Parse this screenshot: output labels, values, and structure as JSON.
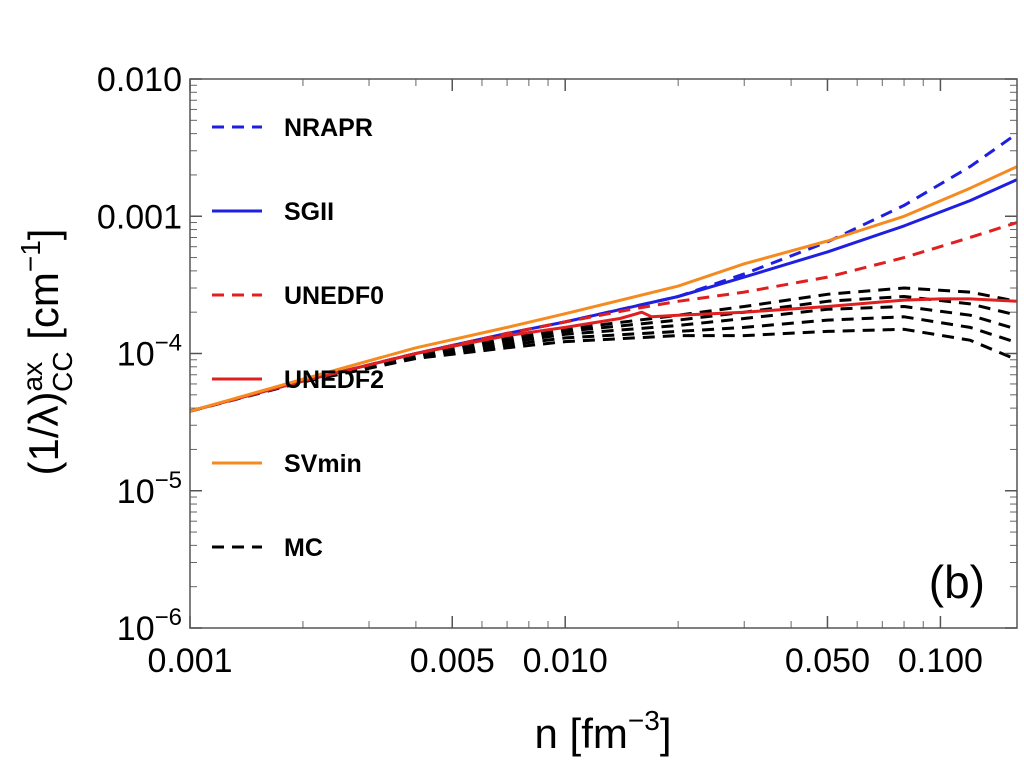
{
  "chart_data": {
    "type": "line",
    "panel_label": "(b)",
    "xlabel": "n [fm",
    "xlabel_sup": "−3",
    "xlabel_end": "]",
    "ylabel": "(1/λ)",
    "ylabel_sup": "ax",
    "ylabel_sub": "CC",
    "ylabel_end": " [cm",
    "ylabel_unit_sup": "−1",
    "ylabel_close": "]",
    "xscale": "log",
    "yscale": "log",
    "xlim": [
      0.001,
      0.16
    ],
    "ylim": [
      1e-06,
      0.01
    ],
    "x_ticks": [
      {
        "value": 0.001,
        "label": "0.001"
      },
      {
        "value": 0.005,
        "label": "0.005"
      },
      {
        "value": 0.01,
        "label": "0.010"
      },
      {
        "value": 0.05,
        "label": "0.050"
      },
      {
        "value": 0.1,
        "label": "0.100"
      }
    ],
    "y_ticks": [
      {
        "value": 0.01,
        "label": "0.010"
      },
      {
        "value": 0.001,
        "label": "0.001"
      },
      {
        "value": 0.0001,
        "base": "10",
        "exp": "−4"
      },
      {
        "value": 1e-05,
        "base": "10",
        "exp": "−5"
      },
      {
        "value": 1e-06,
        "base": "10",
        "exp": "−6"
      }
    ],
    "series": [
      {
        "name": "NRAPR",
        "color": "#1f1fe0",
        "style": "dashed",
        "x": [
          0.001,
          0.002,
          0.004,
          0.007,
          0.01,
          0.02,
          0.03,
          0.05,
          0.08,
          0.12,
          0.16
        ],
        "y": [
          3.8e-05,
          6.3e-05,
          0.0001,
          0.00014,
          0.00017,
          0.00026,
          0.00038,
          0.00065,
          0.0012,
          0.0023,
          0.004
        ]
      },
      {
        "name": "SGII",
        "color": "#1f1fe0",
        "style": "solid",
        "x": [
          0.001,
          0.002,
          0.004,
          0.007,
          0.01,
          0.02,
          0.03,
          0.05,
          0.08,
          0.12,
          0.16
        ],
        "y": [
          3.8e-05,
          6.3e-05,
          0.0001,
          0.00014,
          0.00017,
          0.00026,
          0.00036,
          0.00055,
          0.00085,
          0.0013,
          0.00185
        ]
      },
      {
        "name": "UNEDF0",
        "color": "#e01f1f",
        "style": "dashed",
        "x": [
          0.001,
          0.002,
          0.004,
          0.007,
          0.01,
          0.015,
          0.02,
          0.03,
          0.05,
          0.08,
          0.12,
          0.16
        ],
        "y": [
          3.8e-05,
          6.3e-05,
          0.0001,
          0.00014,
          0.00017,
          0.00021,
          0.00024,
          0.00028,
          0.00036,
          0.0005,
          0.0007,
          0.0009
        ]
      },
      {
        "name": "UNEDF2",
        "color": "#e01f1f",
        "style": "solid",
        "x": [
          0.001,
          0.002,
          0.004,
          0.007,
          0.01,
          0.014,
          0.016,
          0.017,
          0.02,
          0.03,
          0.05,
          0.08,
          0.1,
          0.12,
          0.16
        ],
        "y": [
          3.8e-05,
          6.3e-05,
          0.0001,
          0.000135,
          0.000155,
          0.00018,
          0.0002,
          0.000185,
          0.00019,
          0.0002,
          0.00022,
          0.000245,
          0.00025,
          0.00025,
          0.00024
        ]
      },
      {
        "name": "SVmin",
        "color": "#f58a1f",
        "style": "solid",
        "x": [
          0.001,
          0.002,
          0.004,
          0.007,
          0.01,
          0.02,
          0.03,
          0.05,
          0.08,
          0.12,
          0.16
        ],
        "y": [
          3.8e-05,
          6.5e-05,
          0.00011,
          0.000155,
          0.000195,
          0.00031,
          0.00045,
          0.00066,
          0.001,
          0.0016,
          0.0023
        ]
      },
      {
        "name": "MC",
        "color": "#000000",
        "style": "dashed",
        "x": [
          0.001,
          0.002,
          0.004,
          0.007,
          0.01,
          0.02,
          0.03,
          0.05,
          0.08,
          0.12,
          0.16
        ],
        "y": [
          3.8e-05,
          6.3e-05,
          0.0001,
          0.00013,
          0.00015,
          0.00019,
          0.00022,
          0.00027,
          0.0003,
          0.00028,
          0.00024
        ]
      },
      {
        "name": "",
        "color": "#000000",
        "style": "dashed",
        "x": [
          0.001,
          0.002,
          0.004,
          0.007,
          0.01,
          0.02,
          0.03,
          0.05,
          0.08,
          0.12,
          0.16
        ],
        "y": [
          3.8e-05,
          6.3e-05,
          9.8e-05,
          0.000125,
          0.000145,
          0.000175,
          0.0002,
          0.00024,
          0.00026,
          0.00023,
          0.00019
        ]
      },
      {
        "name": "",
        "color": "#000000",
        "style": "dashed",
        "x": [
          0.001,
          0.002,
          0.004,
          0.007,
          0.01,
          0.02,
          0.03,
          0.05,
          0.08,
          0.12,
          0.16
        ],
        "y": [
          3.8e-05,
          6.3e-05,
          9.6e-05,
          0.00012,
          0.000138,
          0.00016,
          0.00018,
          0.00021,
          0.00022,
          0.00019,
          0.00015
        ]
      },
      {
        "name": "",
        "color": "#000000",
        "style": "dashed",
        "x": [
          0.001,
          0.002,
          0.004,
          0.007,
          0.01,
          0.02,
          0.03,
          0.05,
          0.08,
          0.12,
          0.16
        ],
        "y": [
          3.8e-05,
          6.3e-05,
          9.4e-05,
          0.000115,
          0.00013,
          0.000145,
          0.000155,
          0.000175,
          0.000185,
          0.000155,
          0.00012
        ]
      },
      {
        "name": "",
        "color": "#000000",
        "style": "dashed",
        "x": [
          0.001,
          0.002,
          0.004,
          0.007,
          0.01,
          0.02,
          0.03,
          0.05,
          0.08,
          0.12,
          0.16
        ],
        "y": [
          3.8e-05,
          6.2e-05,
          9.2e-05,
          0.00011,
          0.000122,
          0.000135,
          0.000135,
          0.000145,
          0.00015,
          0.000125,
          9e-05
        ]
      }
    ]
  }
}
